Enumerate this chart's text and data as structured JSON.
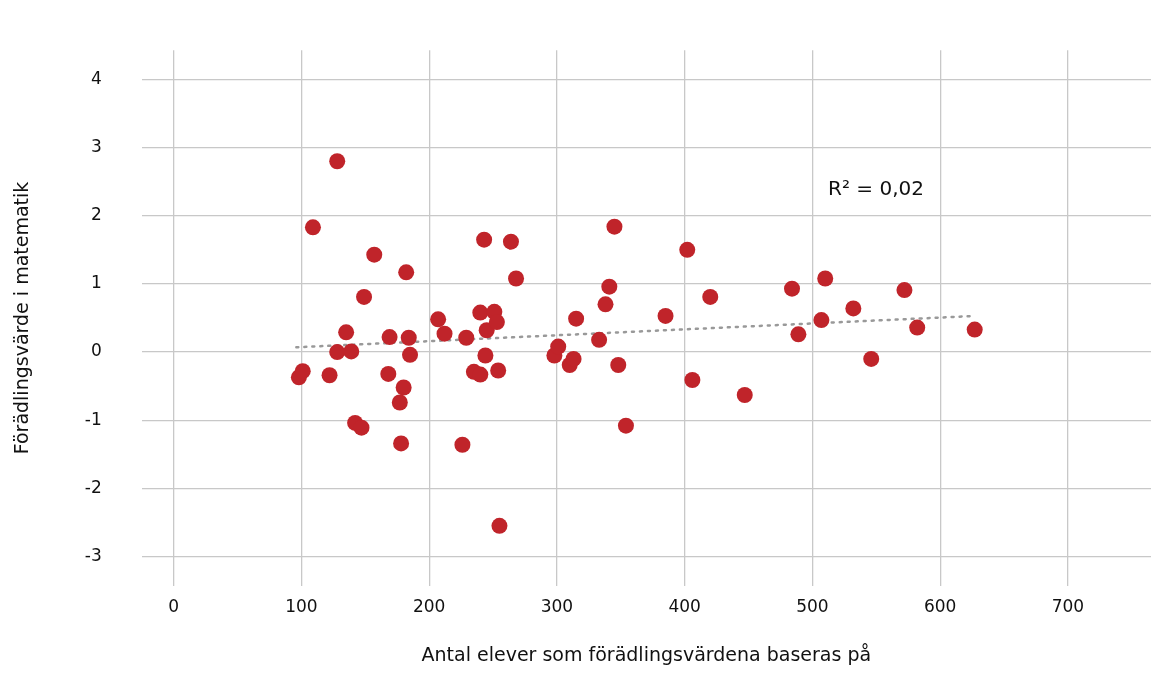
{
  "chart_data": {
    "type": "scatter",
    "xlabel": "Antal elever som förädlingsvärdena baseras på",
    "ylabel": "Förädlingsvärde i matematik",
    "xlim": [
      -25,
      765
    ],
    "ylim": [
      -3.43,
      4.43
    ],
    "xticks": [
      0,
      100,
      200,
      300,
      400,
      500,
      600,
      700
    ],
    "yticks": [
      -3,
      -2,
      -1,
      0,
      1,
      2,
      3,
      4
    ],
    "grid": true,
    "legend": false,
    "marker": "circle",
    "annotations": [
      "R² = 0,02"
    ],
    "series": [
      {
        "color": "#c0242a",
        "x": [
          98,
          101,
          109,
          122,
          128,
          128,
          135,
          139,
          142,
          147,
          149,
          157,
          168,
          169,
          177,
          178,
          180,
          182,
          184,
          185,
          207,
          212,
          226,
          229,
          235,
          240,
          240,
          243,
          244,
          245,
          251,
          253,
          254,
          255,
          264,
          268,
          298,
          301,
          310,
          313,
          315,
          333,
          338,
          341,
          345,
          348,
          354,
          385,
          402,
          406,
          420,
          447,
          484,
          489,
          507,
          510,
          532,
          546,
          572,
          582,
          627
        ],
        "values": [
          -0.37,
          -0.28,
          1.83,
          -0.34,
          2.8,
          0.0,
          0.29,
          0.01,
          -1.04,
          -1.11,
          0.81,
          1.43,
          -0.32,
          0.22,
          -0.74,
          -1.34,
          -0.52,
          1.17,
          0.21,
          -0.04,
          0.48,
          0.27,
          -1.36,
          0.21,
          -0.29,
          0.58,
          -0.33,
          1.65,
          -0.05,
          0.32,
          0.59,
          0.44,
          -0.27,
          -2.55,
          1.62,
          1.08,
          -0.05,
          0.08,
          -0.19,
          -0.1,
          0.49,
          0.18,
          0.7,
          0.96,
          1.84,
          -0.19,
          -1.08,
          0.53,
          1.5,
          -0.41,
          0.81,
          -0.63,
          0.93,
          0.26,
          0.47,
          1.08,
          0.64,
          -0.1,
          0.91,
          0.36,
          0.33
        ]
      },
      {
        "type": "line",
        "color": "#999999",
        "line_style": "dotted",
        "marker": "none",
        "x": [
          96,
          627
        ],
        "values": [
          0.07,
          0.53
        ]
      }
    ]
  }
}
